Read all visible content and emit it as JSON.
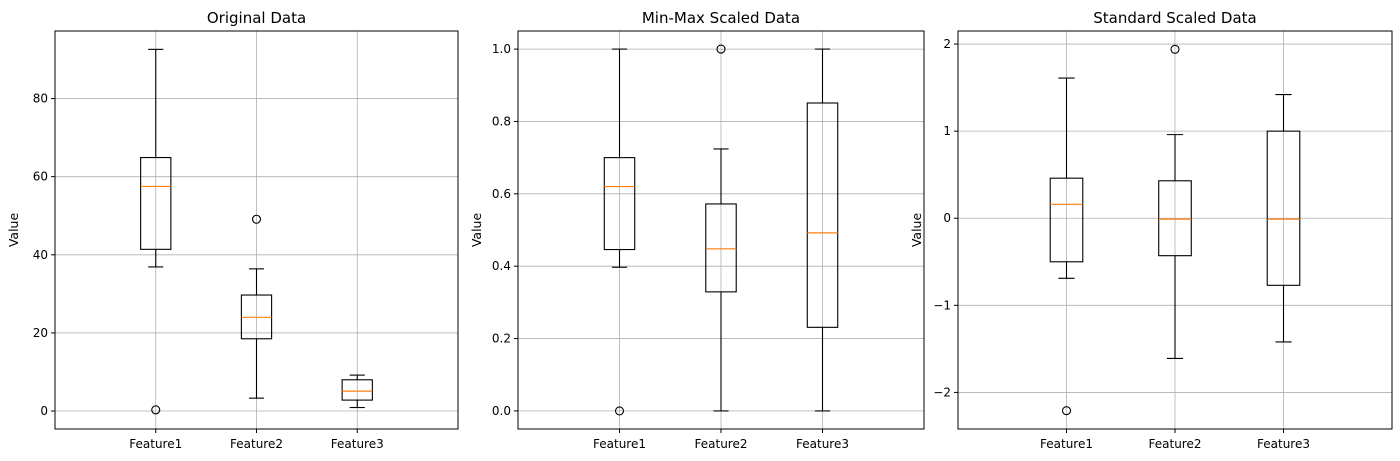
{
  "chart_data": [
    {
      "type": "box",
      "title": "Original Data",
      "xlabel": "",
      "ylabel": "Value",
      "ylim": [
        -4.6,
        97.3
      ],
      "yticks": [
        0,
        20,
        40,
        60,
        80
      ],
      "ytick_labels": [
        "0",
        "20",
        "40",
        "60",
        "80"
      ],
      "grid": true,
      "categories": [
        "Feature1",
        "Feature2",
        "Feature3"
      ],
      "boxes": [
        {
          "whislo": 36.9,
          "q1": 41.4,
          "med": 57.5,
          "q3": 64.9,
          "whishi": 92.6,
          "fliers": [
            0.3
          ]
        },
        {
          "whislo": 3.3,
          "q1": 18.5,
          "med": 24.0,
          "q3": 29.7,
          "whishi": 36.4,
          "fliers": [
            49.1
          ]
        },
        {
          "whislo": 0.9,
          "q1": 2.8,
          "med": 5.1,
          "q3": 8.0,
          "whishi": 9.2,
          "fliers": []
        }
      ]
    },
    {
      "type": "box",
      "title": "Min-Max Scaled Data",
      "xlabel": "",
      "ylabel": "Value",
      "ylim": [
        -0.05,
        1.05
      ],
      "yticks": [
        0.0,
        0.2,
        0.4,
        0.6,
        0.8,
        1.0
      ],
      "ytick_labels": [
        "0.0",
        "0.2",
        "0.4",
        "0.6",
        "0.8",
        "1.0"
      ],
      "grid": true,
      "categories": [
        "Feature1",
        "Feature2",
        "Feature3"
      ],
      "boxes": [
        {
          "whislo": 0.397,
          "q1": 0.446,
          "med": 0.62,
          "q3": 0.7,
          "whishi": 1.0,
          "fliers": [
            0.0
          ]
        },
        {
          "whislo": 0.0,
          "q1": 0.329,
          "med": 0.448,
          "q3": 0.572,
          "whishi": 0.724,
          "fliers": [
            1.0
          ]
        },
        {
          "whislo": 0.0,
          "q1": 0.231,
          "med": 0.492,
          "q3": 0.851,
          "whishi": 1.0,
          "fliers": []
        }
      ]
    },
    {
      "type": "box",
      "title": "Standard Scaled Data",
      "xlabel": "",
      "ylabel": "Value",
      "ylim": [
        -2.42,
        2.15
      ],
      "yticks": [
        -2,
        -1,
        0,
        1,
        2
      ],
      "ytick_labels": [
        "−2",
        "−1",
        "0",
        "1",
        "2"
      ],
      "grid": true,
      "categories": [
        "Feature1",
        "Feature2",
        "Feature3"
      ],
      "boxes": [
        {
          "whislo": -0.69,
          "q1": -0.5,
          "med": 0.16,
          "q3": 0.46,
          "whishi": 1.61,
          "fliers": [
            -2.21
          ]
        },
        {
          "whislo": -1.61,
          "q1": -0.43,
          "med": -0.01,
          "q3": 0.43,
          "whishi": 0.96,
          "fliers": [
            1.94
          ]
        },
        {
          "whislo": -1.42,
          "q1": -0.77,
          "med": -0.01,
          "q3": 1.0,
          "whishi": 1.42,
          "fliers": []
        }
      ]
    }
  ],
  "colors": {
    "box": "#000000",
    "median": "#ff7f0e",
    "grid": "#b0b0b0",
    "background": "#ffffff"
  }
}
